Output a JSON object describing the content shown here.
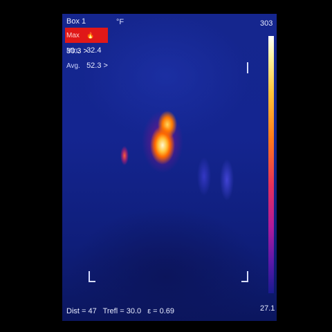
{
  "measurement_box": {
    "label": "Box 1",
    "max": {
      "label": "Max",
      "value": "30.3",
      "arrow": ">"
    },
    "min": {
      "label": "Min.",
      "value": "32.4"
    },
    "avg": {
      "label": "Avg.",
      "value": "52.3",
      "arrow": ">"
    }
  },
  "unit": "°F",
  "scale": {
    "max": "303",
    "min": "27.1"
  },
  "footer": {
    "dist": "Dist = 47",
    "trefl": "Trefl = 30.0",
    "emissivity": "ε = 0.69"
  },
  "icons": [
    "flame-icon",
    "crosshair-corner-icon"
  ]
}
